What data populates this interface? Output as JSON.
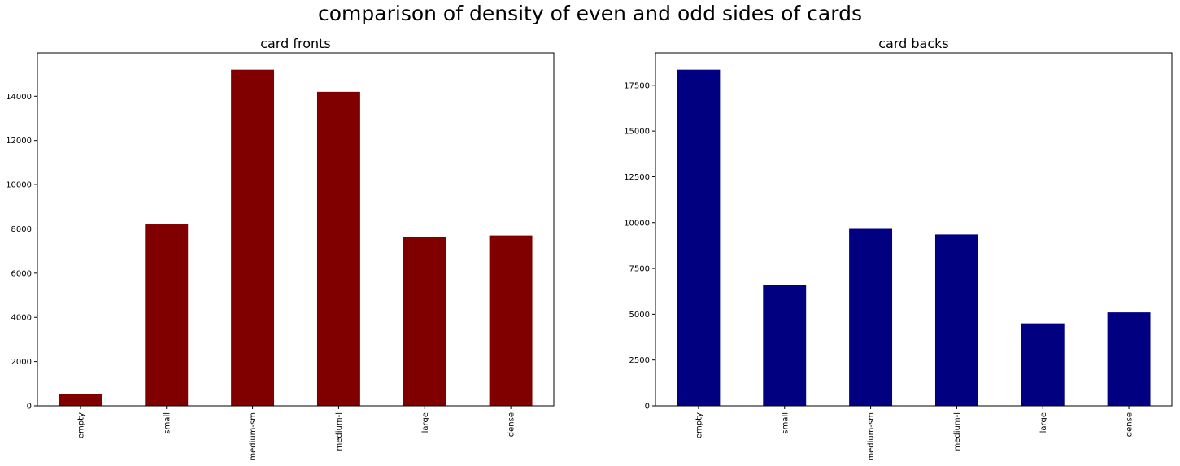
{
  "figure": {
    "suptitle": "comparison of density of even and odd sides of cards"
  },
  "chart_data": [
    {
      "type": "bar",
      "title": "card fronts",
      "xlabel": "",
      "ylabel": "",
      "categories": [
        "empty",
        "small",
        "medium-sm",
        "medium-l",
        "large",
        "dense"
      ],
      "values": [
        550,
        8200,
        15200,
        14200,
        7650,
        7700
      ],
      "ylim": [
        0,
        15960
      ],
      "yticks": [
        0,
        2000,
        4000,
        6000,
        8000,
        10000,
        12000,
        14000
      ],
      "ytick_labels": [
        "0",
        "2000",
        "4000",
        "6000",
        "8000",
        "10000",
        "12000",
        "14000"
      ],
      "color": "#800000",
      "grid": false
    },
    {
      "type": "bar",
      "title": "card backs",
      "xlabel": "",
      "ylabel": "",
      "categories": [
        "empty",
        "small",
        "medium-sm",
        "medium-l",
        "large",
        "dense"
      ],
      "values": [
        18350,
        6600,
        9700,
        9350,
        4500,
        5100
      ],
      "ylim": [
        0,
        19268
      ],
      "yticks": [
        0,
        2500,
        5000,
        7500,
        10000,
        12500,
        15000,
        17500
      ],
      "ytick_labels": [
        "0",
        "2500",
        "5000",
        "7500",
        "10000",
        "12500",
        "15000",
        "17500"
      ],
      "color": "#000080",
      "grid": false
    }
  ]
}
